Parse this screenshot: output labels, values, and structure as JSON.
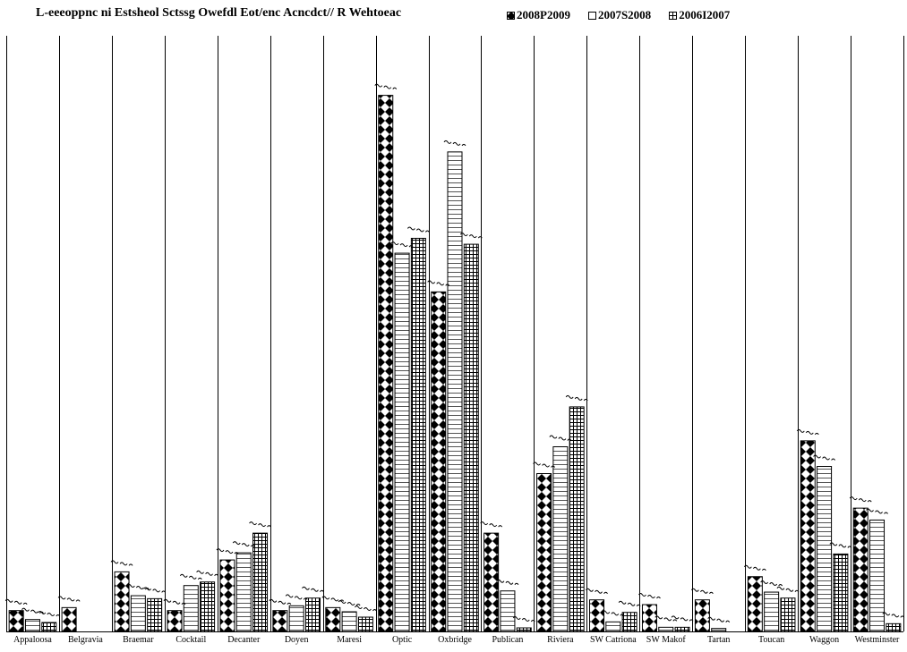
{
  "colors": {
    "ink": "#000000",
    "background": "#ffffff"
  },
  "chart_data": {
    "type": "bar",
    "title": "L-eeeoppnc ni Estsheol Sctssg Owefdl Eot/enc Acncdct// R Wehtoeac",
    "xlabel": "",
    "ylabel": "",
    "ylim": [
      0,
      100
    ],
    "grid": "vertical category separators",
    "legend_position": "top-right",
    "categories": [
      "Appaloosa",
      "Belgravia",
      "Braemar",
      "Cocktail",
      "Decanter",
      "Doyen",
      "Maresi",
      "Optic",
      "Oxbridge",
      "Publican",
      "Riviera",
      "SW Catriona",
      "SW Makof",
      "Tartan",
      "Toucan",
      "Waggon",
      "Westminster"
    ],
    "series": [
      {
        "name": "2008P2009",
        "pattern": "diamond",
        "values": [
          3.5,
          4,
          10,
          3.5,
          12,
          3.5,
          4,
          90,
          57,
          16.5,
          26.5,
          5.3,
          4.5,
          5.3,
          9.2,
          32,
          20.7
        ]
      },
      {
        "name": "2007S2008",
        "pattern": "hlines",
        "values": [
          2,
          0,
          6,
          7.7,
          13.2,
          4.3,
          3.3,
          63.5,
          80.5,
          6.8,
          31,
          1.6,
          0.7,
          0.5,
          6.6,
          27.7,
          18.7
        ]
      },
      {
        "name": "2006I2007",
        "pattern": "grid",
        "values": [
          1.5,
          0,
          5.5,
          8.3,
          16.5,
          5.6,
          2.4,
          66,
          65,
          0.6,
          37.7,
          3.2,
          0.7,
          0,
          5.6,
          13,
          1.3
        ]
      }
    ]
  }
}
